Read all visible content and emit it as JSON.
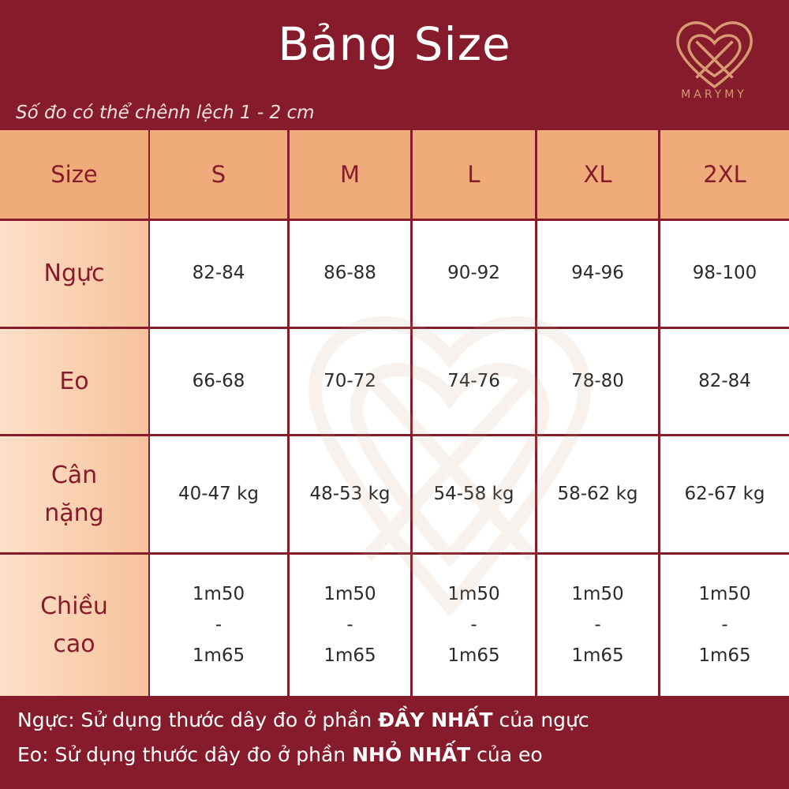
{
  "header": {
    "title": "Bảng Size",
    "subtitle": "Số đo có thể chênh lệch 1 - 2 cm",
    "logo": "MARYMY"
  },
  "table": {
    "columns": [
      "Size",
      "S",
      "M",
      "L",
      "XL",
      "2XL"
    ],
    "rows": [
      [
        "Ngực",
        "82-84",
        "86-88",
        "90-92",
        "94-96",
        "98-100"
      ],
      [
        "Eo",
        "66-68",
        "70-72",
        "74-76",
        "78-80",
        "82-84"
      ],
      [
        "Cân\nnặng",
        "40-47 kg",
        "48-53 kg",
        "54-58 kg",
        "58-62 kg",
        "62-67 kg"
      ],
      [
        "Chiều\ncao",
        "1m50\n-\n1m65",
        "1m50\n-\n1m65",
        "1m50\n-\n1m65",
        "1m50\n-\n1m65",
        "1m50\n-\n1m65"
      ]
    ]
  },
  "footer": {
    "lines": [
      [
        "Ngực: Sử dụng thước dây đo ở phần ",
        "ĐẦY NHẤT",
        " của ngực"
      ],
      [
        "Eo: Sử dụng thước dây đo ở phần ",
        "NHỎ NHẤT",
        " của eo"
      ]
    ]
  }
}
